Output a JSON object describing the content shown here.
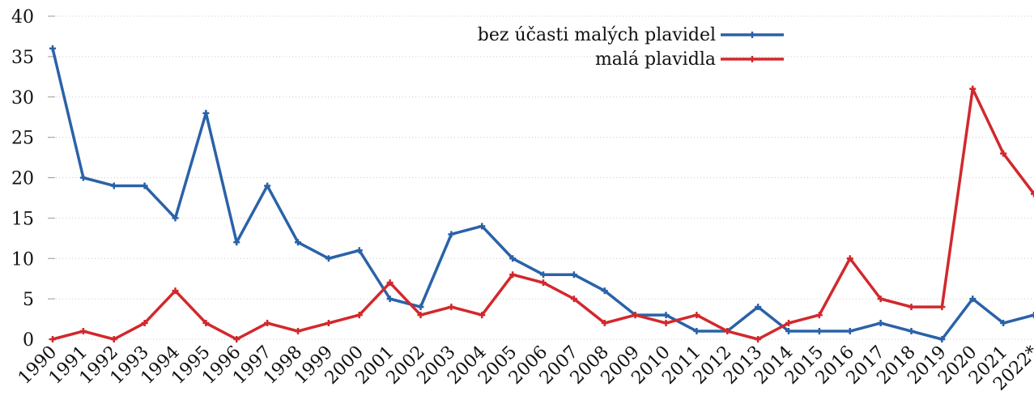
{
  "chart_data": {
    "type": "line",
    "categories": [
      "1990",
      "1991",
      "1992",
      "1993",
      "1994",
      "1995",
      "1996",
      "1997",
      "1998",
      "1999",
      "2000",
      "2001",
      "2002",
      "2003",
      "2004",
      "2005",
      "2006",
      "2007",
      "2008",
      "2009",
      "2010",
      "2011",
      "2012",
      "2013",
      "2014",
      "2015",
      "2016",
      "2017",
      "2018",
      "2019",
      "2020",
      "2021",
      "2022*"
    ],
    "series": [
      {
        "name": "bez účasti malých plavidel",
        "color": "#2a62a8",
        "values": [
          36,
          20,
          19,
          19,
          15,
          28,
          12,
          19,
          12,
          10,
          11,
          5,
          4,
          13,
          14,
          10,
          8,
          8,
          6,
          3,
          3,
          1,
          1,
          4,
          1,
          1,
          1,
          2,
          1,
          0,
          5,
          2,
          3
        ]
      },
      {
        "name": "malá plavidla",
        "color": "#d2282c",
        "values": [
          0,
          1,
          0,
          2,
          6,
          2,
          0,
          2,
          1,
          2,
          3,
          7,
          3,
          4,
          3,
          8,
          7,
          5,
          2,
          3,
          2,
          3,
          1,
          0,
          2,
          3,
          10,
          5,
          4,
          4,
          31,
          23,
          18
        ]
      }
    ],
    "ylim": [
      0,
      40
    ],
    "yticks": [
      0,
      5,
      10,
      15,
      20,
      25,
      30,
      35,
      40
    ],
    "grid": true,
    "legend": "top-right"
  }
}
